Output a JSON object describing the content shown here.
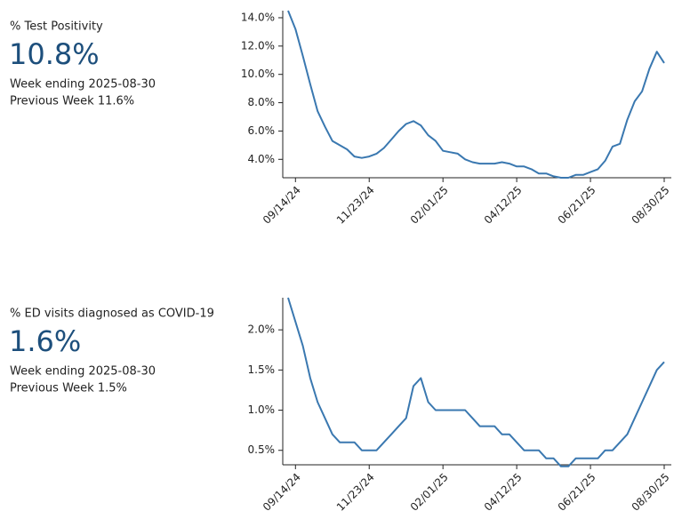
{
  "chart_data": [
    {
      "type": "line",
      "title": "% Test Positivity",
      "headline": "10.8%",
      "period": "Week ending 2025-08-30",
      "previous": "Previous Week 11.6%",
      "categories": [
        null,
        "09/14/24",
        null,
        null,
        null,
        null,
        null,
        null,
        null,
        null,
        null,
        "11/23/24",
        null,
        null,
        null,
        null,
        null,
        null,
        null,
        null,
        null,
        "02/01/25",
        null,
        null,
        null,
        null,
        null,
        null,
        null,
        null,
        null,
        "04/12/25",
        null,
        null,
        null,
        null,
        null,
        null,
        null,
        null,
        null,
        "06/21/25",
        null,
        null,
        null,
        null,
        null,
        null,
        null,
        null,
        null,
        "08/30/25"
      ],
      "values": [
        14.5,
        13.2,
        11.3,
        9.3,
        7.4,
        6.3,
        5.3,
        5.0,
        4.7,
        4.2,
        4.1,
        4.2,
        4.4,
        4.8,
        5.4,
        6.0,
        6.5,
        6.7,
        6.4,
        5.7,
        5.3,
        4.6,
        4.5,
        4.4,
        4.0,
        3.8,
        3.7,
        3.7,
        3.7,
        3.8,
        3.7,
        3.5,
        3.5,
        3.3,
        3.0,
        3.0,
        2.8,
        2.7,
        2.7,
        2.9,
        2.9,
        3.1,
        3.3,
        3.9,
        4.9,
        5.1,
        6.8,
        8.1,
        8.8,
        10.4,
        11.6,
        10.8
      ],
      "color": "#3a78b0",
      "ylim": [
        2.7,
        14.5
      ],
      "yticks": [
        {
          "value": 4,
          "label": "4.0%"
        },
        {
          "value": 6,
          "label": "6.0%"
        },
        {
          "value": 8,
          "label": "8.0%"
        },
        {
          "value": 10,
          "label": "10.0%"
        },
        {
          "value": 12,
          "label": "12.0%"
        },
        {
          "value": 14,
          "label": "14.0%"
        }
      ]
    },
    {
      "type": "line",
      "title": "% ED visits diagnosed as COVID-19",
      "headline": "1.6%",
      "period": "Week ending 2025-08-30",
      "previous": "Previous Week 1.5%",
      "categories": [
        null,
        "09/14/24",
        null,
        null,
        null,
        null,
        null,
        null,
        null,
        null,
        null,
        "11/23/24",
        null,
        null,
        null,
        null,
        null,
        null,
        null,
        null,
        null,
        "02/01/25",
        null,
        null,
        null,
        null,
        null,
        null,
        null,
        null,
        null,
        "04/12/25",
        null,
        null,
        null,
        null,
        null,
        null,
        null,
        null,
        null,
        "06/21/25",
        null,
        null,
        null,
        null,
        null,
        null,
        null,
        null,
        null,
        "08/30/25"
      ],
      "values": [
        2.4,
        2.1,
        1.8,
        1.4,
        1.1,
        0.9,
        0.7,
        0.6,
        0.6,
        0.6,
        0.5,
        0.5,
        0.5,
        0.6,
        0.7,
        0.8,
        0.9,
        1.3,
        1.4,
        1.1,
        1.0,
        1.0,
        1.0,
        1.0,
        1.0,
        0.9,
        0.8,
        0.8,
        0.8,
        0.7,
        0.7,
        0.6,
        0.5,
        0.5,
        0.5,
        0.4,
        0.4,
        0.3,
        0.3,
        0.4,
        0.4,
        0.4,
        0.4,
        0.5,
        0.5,
        0.6,
        0.7,
        0.9,
        1.1,
        1.3,
        1.5,
        1.6
      ],
      "color": "#3a78b0",
      "ylim": [
        0.32,
        2.4
      ],
      "yticks": [
        {
          "value": 0.5,
          "label": "0.5%"
        },
        {
          "value": 1.0,
          "label": "1.0%"
        },
        {
          "value": 1.5,
          "label": "1.5%"
        },
        {
          "value": 2.0,
          "label": "2.0%"
        }
      ]
    }
  ]
}
